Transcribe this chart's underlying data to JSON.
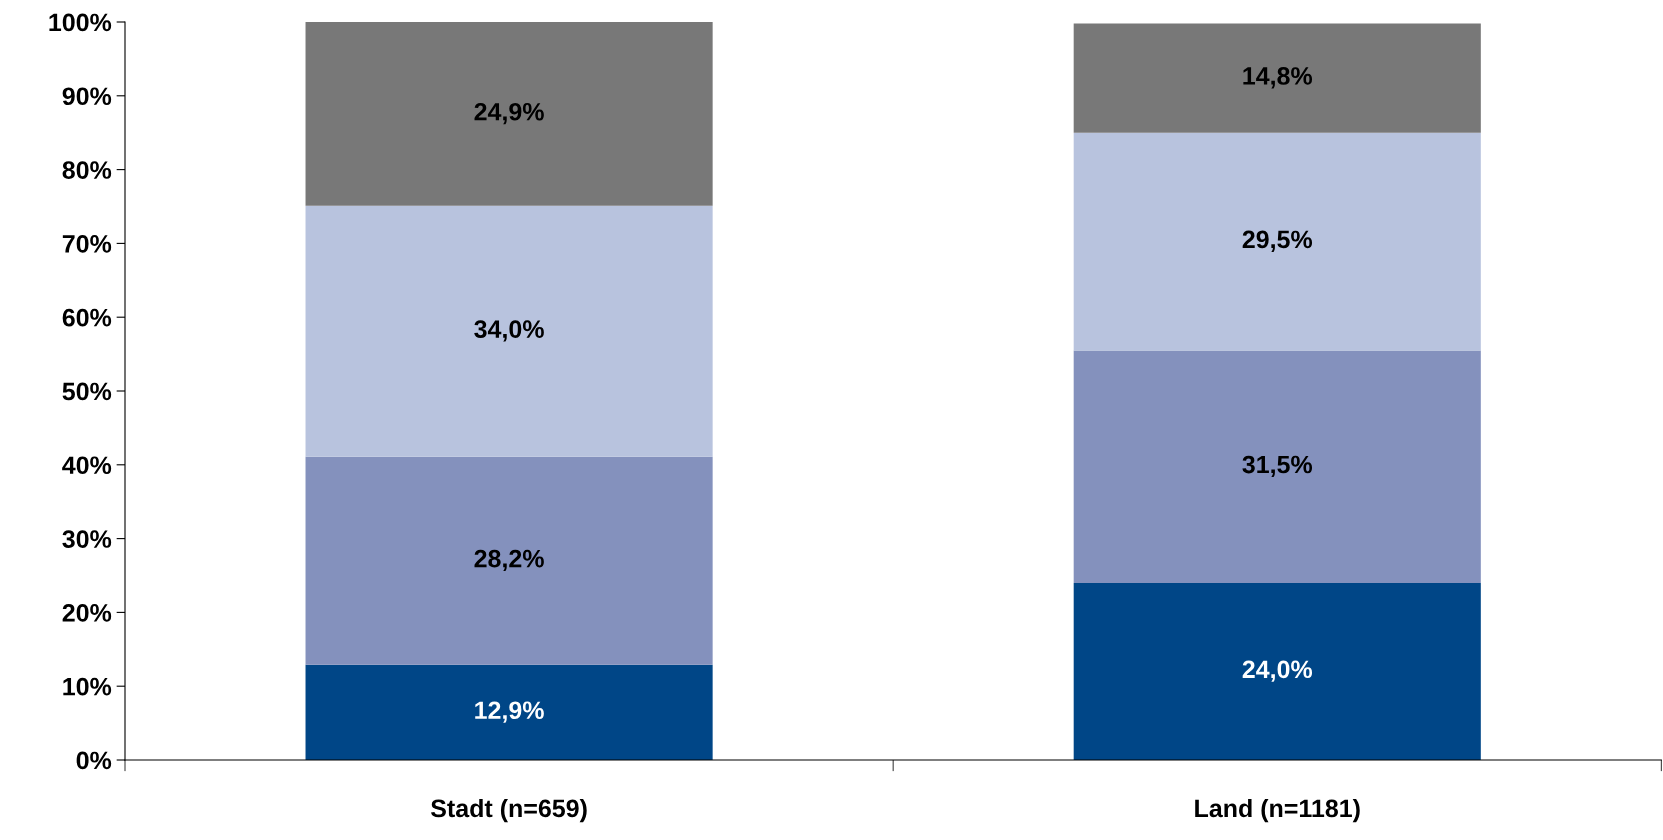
{
  "chart_data": {
    "type": "bar",
    "stacked": true,
    "categories": [
      "Stadt (n=659)",
      "Land (n=1181)"
    ],
    "series": [
      {
        "color": "#004687",
        "values": [
          12.9,
          24.0
        ],
        "value_labels": [
          "12,9%",
          "24,0%"
        ]
      },
      {
        "color": "#8491bd",
        "values": [
          28.2,
          31.5
        ],
        "value_labels": [
          "28,2%",
          "31,5%"
        ]
      },
      {
        "color": "#b8c3de",
        "values": [
          34.0,
          29.5
        ],
        "value_labels": [
          "34,0%",
          "29,5%"
        ]
      },
      {
        "color": "#787878",
        "values": [
          24.9,
          14.8
        ],
        "value_labels": [
          "24,9%",
          "14,8%"
        ]
      }
    ],
    "ylim": [
      0,
      100
    ],
    "yticks": [
      {
        "value": 0,
        "label": "0%"
      },
      {
        "value": 10,
        "label": "10%"
      },
      {
        "value": 20,
        "label": "20%"
      },
      {
        "value": 30,
        "label": "30%"
      },
      {
        "value": 40,
        "label": "40%"
      },
      {
        "value": 50,
        "label": "50%"
      },
      {
        "value": 60,
        "label": "60%"
      },
      {
        "value": 70,
        "label": "70%"
      },
      {
        "value": 80,
        "label": "80%"
      },
      {
        "value": 90,
        "label": "90%"
      },
      {
        "value": 100,
        "label": "100%"
      }
    ],
    "grid": false
  }
}
